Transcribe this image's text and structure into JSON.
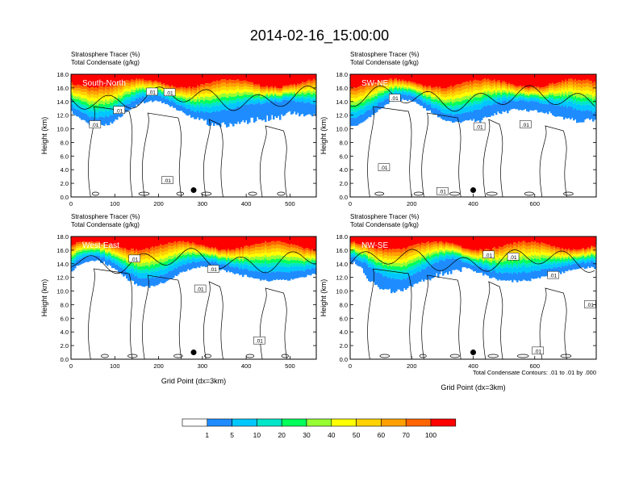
{
  "title": "2014-02-16_15:00:00",
  "colors": {
    "levels": [
      "#ffffff",
      "#1e8cff",
      "#00c8ff",
      "#00e6c8",
      "#00ff5a",
      "#96ff32",
      "#ffff00",
      "#ffd200",
      "#ffa000",
      "#ff6400",
      "#ff0000"
    ],
    "contour": "#000000"
  },
  "colorbar": {
    "labels": [
      "1",
      "5",
      "10",
      "20",
      "30",
      "40",
      "50",
      "60",
      "70",
      "100"
    ]
  },
  "contour_note": "Total Condensate Contours: .01 to .01 by .000",
  "chart_data": [
    {
      "type": "heatmap",
      "panel_label": "South-North",
      "title_lines": [
        "Stratosphere Tracer   (%)",
        "Total Condensate   (g/kg)"
      ],
      "ylabel": "Height (km)",
      "xlabel": "",
      "xlim": [
        0,
        560
      ],
      "ylim": [
        0,
        18
      ],
      "xticks": [
        0,
        100,
        200,
        300,
        400,
        500
      ],
      "yticks": [
        "0.0",
        "2.0",
        "4.0",
        "6.0",
        "8.0",
        "10.0",
        "12.0",
        "14.0",
        "16.0",
        "18.0"
      ],
      "contour_labels": [
        {
          "x": 110,
          "y": 12.7,
          "text": ".01"
        },
        {
          "x": 185,
          "y": 15.4,
          "text": ".01"
        },
        {
          "x": 225,
          "y": 15.3,
          "text": ".01"
        },
        {
          "x": 55,
          "y": 10.6,
          "text": ".01"
        },
        {
          "x": 220,
          "y": 2.4,
          "text": ".01"
        }
      ],
      "marker": {
        "x": 280,
        "y": 1.0
      }
    },
    {
      "type": "heatmap",
      "panel_label": "SW-NE",
      "title_lines": [
        "Stratosphere Tracer   (%)",
        "Total Condensate   (g/kg)"
      ],
      "ylabel": "Height (km)",
      "xlabel": "",
      "xlim": [
        0,
        800
      ],
      "ylim": [
        0,
        18
      ],
      "xticks": [
        0,
        200,
        400,
        600
      ],
      "yticks": [
        "0.0",
        "2.0",
        "4.0",
        "6.0",
        "8.0",
        "10.0",
        "12.0",
        "14.0",
        "16.0",
        "18.0"
      ],
      "contour_labels": [
        {
          "x": 145,
          "y": 14.5,
          "text": ".01"
        },
        {
          "x": 420,
          "y": 10.3,
          "text": ".01"
        },
        {
          "x": 570,
          "y": 10.6,
          "text": ".01"
        },
        {
          "x": 110,
          "y": 4.3,
          "text": ".01"
        },
        {
          "x": 300,
          "y": 0.8,
          "text": ".01"
        }
      ],
      "marker": {
        "x": 400,
        "y": 1.0
      }
    },
    {
      "type": "heatmap",
      "panel_label": "West-East",
      "title_lines": [
        "Stratosphere Tracer   (%)",
        "Total Condensate   (g/kg)"
      ],
      "ylabel": "Height (km)",
      "xlabel": "Grid Point (dx=3km)",
      "xlim": [
        0,
        560
      ],
      "ylim": [
        0,
        18
      ],
      "xticks": [
        0,
        100,
        200,
        300,
        400,
        500
      ],
      "yticks": [
        "0.0",
        "2.0",
        "4.0",
        "6.0",
        "8.0",
        "10.0",
        "12.0",
        "14.0",
        "16.0",
        "18.0"
      ],
      "contour_labels": [
        {
          "x": 145,
          "y": 14.7,
          "text": ".01"
        },
        {
          "x": 325,
          "y": 13.2,
          "text": ".01"
        },
        {
          "x": 295,
          "y": 10.3,
          "text": ".01"
        },
        {
          "x": 430,
          "y": 2.7,
          "text": ".01"
        }
      ],
      "marker": {
        "x": 280,
        "y": 1.0
      }
    },
    {
      "type": "heatmap",
      "panel_label": "NW-SE",
      "title_lines": [
        "Stratosphere Tracer   (%)",
        "Total Condensate   (g/kg)"
      ],
      "ylabel": "Height (km)",
      "xlabel": "Grid Point (dx=3km)",
      "xlim": [
        0,
        800
      ],
      "ylim": [
        0,
        18
      ],
      "xticks": [
        0,
        200,
        400,
        600
      ],
      "yticks": [
        "0.0",
        "2.0",
        "4.0",
        "6.0",
        "8.0",
        "10.0",
        "12.0",
        "14.0",
        "16.0",
        "18.0"
      ],
      "contour_labels": [
        {
          "x": 450,
          "y": 15.3,
          "text": ".01"
        },
        {
          "x": 530,
          "y": 15.0,
          "text": ".01"
        },
        {
          "x": 660,
          "y": 12.3,
          "text": ".01"
        },
        {
          "x": 780,
          "y": 8.0,
          "text": ".01"
        },
        {
          "x": 610,
          "y": 1.2,
          "text": ".01"
        }
      ],
      "marker": {
        "x": 400,
        "y": 1.0
      }
    }
  ]
}
